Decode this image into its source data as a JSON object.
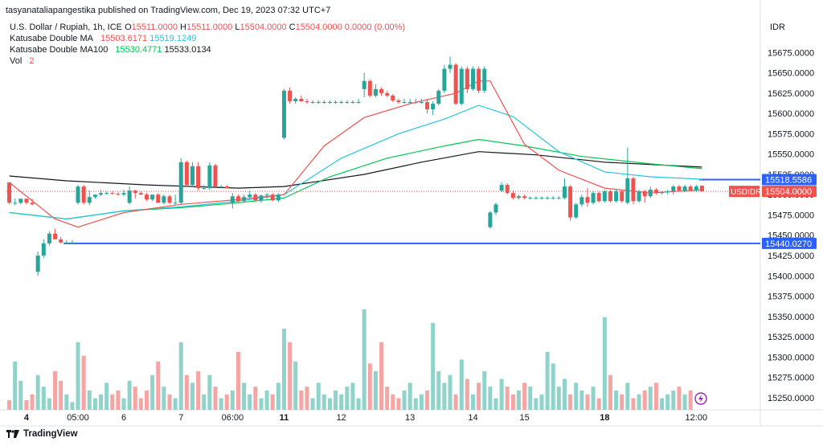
{
  "header": {
    "published": "tasyanataliapangestika published on TradingView.com, Dec 19, 2023 07:32 UTC+7",
    "symbol": "U.S. Dollar / Rupiah, 1h, ICE",
    "ohlc": {
      "o_label": "O",
      "o": "15511.0000",
      "h_label": "H",
      "h": "15511.0000",
      "l_label": "L",
      "l": "15504.0000",
      "c_label": "C",
      "c": "15504.0000",
      "chg": "0.0000 (0.00%)"
    },
    "ma1": {
      "label": "Katusabe Double MA",
      "v1": "15503.6171",
      "v2": "15519.1249"
    },
    "ma2": {
      "label": "Katusabe Double MA100",
      "v1": "15530.4771",
      "v2": "15533.0134"
    },
    "vol": {
      "label": "Vol",
      "value": "2"
    }
  },
  "footer": {
    "brand": "TradingView"
  },
  "colors": {
    "up": "#26a69a",
    "down": "#ef5350",
    "ma_red": "#ef5350",
    "ma_cyan": "#26c6da",
    "ma_green": "#00c853",
    "ma_black": "#131722",
    "hline": "#2962ff"
  },
  "chart_data": {
    "type": "candlestick",
    "currency_label": "IDR",
    "ylim": [
      15235,
      15712
    ],
    "y_ticks": [
      15250,
      15275,
      15300,
      15325,
      15350,
      15375,
      15400,
      15425,
      15450,
      15475,
      15500,
      15525,
      15550,
      15575,
      15600,
      15625,
      15650,
      15675
    ],
    "x_ticks": [
      {
        "label": "4",
        "bold": true,
        "i": 3
      },
      {
        "label": "05:00",
        "bold": false,
        "i": 12
      },
      {
        "label": "6",
        "bold": false,
        "i": 20
      },
      {
        "label": "7",
        "bold": false,
        "i": 30
      },
      {
        "label": "06:00",
        "bold": false,
        "i": 39
      },
      {
        "label": "11",
        "bold": true,
        "i": 48
      },
      {
        "label": "12",
        "bold": false,
        "i": 58
      },
      {
        "label": "13",
        "bold": false,
        "i": 70
      },
      {
        "label": "14",
        "bold": false,
        "i": 81
      },
      {
        "label": "15",
        "bold": false,
        "i": 90
      },
      {
        "label": "18",
        "bold": true,
        "i": 104
      },
      {
        "label": "12:00",
        "bold": false,
        "i": 120
      }
    ],
    "candles": [
      [
        15515,
        15515,
        15488,
        15490
      ],
      [
        15490,
        15495,
        15487,
        15490
      ],
      [
        15490,
        15495,
        15488,
        15495
      ],
      [
        15495,
        15495,
        15488,
        15490
      ],
      [
        15490,
        15495,
        15487,
        15488
      ],
      [
        15405,
        15430,
        15400,
        15425
      ],
      [
        15425,
        15445,
        15422,
        15440
      ],
      [
        15440,
        15455,
        15437,
        15452
      ],
      [
        15452,
        15458,
        15448,
        15445
      ],
      [
        15445,
        15448,
        15440,
        15441
      ],
      [
        15441,
        15444,
        15440,
        15441
      ],
      [
        15441,
        15444,
        15440,
        15441
      ],
      [
        15490,
        15512,
        15488,
        15510
      ],
      [
        15510,
        15512,
        15488,
        15490
      ],
      [
        15490,
        15505,
        15487,
        15497
      ],
      [
        15497,
        15500,
        15495,
        15500
      ],
      [
        15500,
        15506,
        15498,
        15502
      ],
      [
        15502,
        15504,
        15500,
        15502
      ],
      [
        15502,
        15504,
        15500,
        15501
      ],
      [
        15501,
        15503,
        15499,
        15500
      ],
      [
        15500,
        15506,
        15498,
        15502
      ],
      [
        15490,
        15510,
        15488,
        15505
      ],
      [
        15505,
        15506,
        15495,
        15502
      ],
      [
        15502,
        15504,
        15500,
        15500
      ],
      [
        15500,
        15502,
        15492,
        15494
      ],
      [
        15494,
        15500,
        15492,
        15500
      ],
      [
        15500,
        15502,
        15490,
        15490
      ],
      [
        15490,
        15500,
        15488,
        15498
      ],
      [
        15498,
        15500,
        15488,
        15490
      ],
      [
        15490,
        15500,
        15488,
        15490
      ],
      [
        15490,
        15545,
        15488,
        15540
      ],
      [
        15540,
        15542,
        15510,
        15512
      ],
      [
        15512,
        15540,
        15510,
        15535
      ],
      [
        15535,
        15540,
        15505,
        15508
      ],
      [
        15508,
        15512,
        15506,
        15508
      ],
      [
        15508,
        15540,
        15506,
        15536
      ],
      [
        15536,
        15538,
        15508,
        15510
      ],
      [
        15510,
        15512,
        15508,
        15510
      ],
      [
        15510,
        15512,
        15508,
        15508
      ],
      [
        15490,
        15502,
        15483,
        15498
      ],
      [
        15498,
        15500,
        15490,
        15492
      ],
      [
        15492,
        15500,
        15490,
        15497
      ],
      [
        15497,
        15505,
        15495,
        15500
      ],
      [
        15500,
        15502,
        15492,
        15493
      ],
      [
        15493,
        15500,
        15490,
        15499
      ],
      [
        15499,
        15502,
        15495,
        15500
      ],
      [
        15500,
        15502,
        15492,
        15493
      ],
      [
        15493,
        15502,
        15491,
        15500
      ],
      [
        15570,
        15630,
        15568,
        15628
      ],
      [
        15628,
        15632,
        15612,
        15615
      ],
      [
        15615,
        15620,
        15612,
        15618
      ],
      [
        15618,
        15622,
        15614,
        15615
      ],
      [
        15615,
        15618,
        15612,
        15614
      ],
      [
        15614,
        15616,
        15612,
        15614
      ],
      [
        15614,
        15616,
        15612,
        15614
      ],
      [
        15614,
        15616,
        15612,
        15614
      ],
      [
        15614,
        15616,
        15612,
        15614
      ],
      [
        15614,
        15616,
        15612,
        15614
      ],
      [
        15614,
        15616,
        15612,
        15614
      ],
      [
        15614,
        15616,
        15612,
        15614
      ],
      [
        15614,
        15616,
        15612,
        15614
      ],
      [
        15614,
        15618,
        15612,
        15614
      ],
      [
        15630,
        15650,
        15620,
        15640
      ],
      [
        15640,
        15642,
        15620,
        15622
      ],
      [
        15622,
        15636,
        15620,
        15630
      ],
      [
        15630,
        15632,
        15622,
        15625
      ],
      [
        15625,
        15628,
        15620,
        15622
      ],
      [
        15622,
        15624,
        15614,
        15616
      ],
      [
        15616,
        15618,
        15612,
        15614
      ],
      [
        15614,
        15618,
        15612,
        15614
      ],
      [
        15614,
        15618,
        15612,
        15614
      ],
      [
        15614,
        15618,
        15612,
        15614
      ],
      [
        15614,
        15618,
        15612,
        15614
      ],
      [
        15614,
        15618,
        15600,
        15605
      ],
      [
        15605,
        15615,
        15598,
        15612
      ],
      [
        15612,
        15630,
        15610,
        15628
      ],
      [
        15628,
        15660,
        15625,
        15655
      ],
      [
        15655,
        15670,
        15650,
        15660
      ],
      [
        15660,
        15662,
        15610,
        15612
      ],
      [
        15612,
        15658,
        15610,
        15655
      ],
      [
        15655,
        15658,
        15625,
        15630
      ],
      [
        15630,
        15658,
        15628,
        15655
      ],
      [
        15655,
        15658,
        15625,
        15628
      ],
      [
        15628,
        15658,
        15625,
        15655
      ],
      [
        15460,
        15480,
        15458,
        15478
      ],
      [
        15478,
        15490,
        15475,
        15488
      ],
      [
        15505,
        15515,
        15503,
        15512
      ],
      [
        15512,
        15514,
        15500,
        15502
      ],
      [
        15502,
        15505,
        15494,
        15496
      ],
      [
        15496,
        15500,
        15494,
        15498
      ],
      [
        15498,
        15500,
        15494,
        15496
      ],
      [
        15496,
        15498,
        15494,
        15496
      ],
      [
        15496,
        15498,
        15494,
        15496
      ],
      [
        15496,
        15498,
        15494,
        15496
      ],
      [
        15496,
        15498,
        15494,
        15496
      ],
      [
        15496,
        15498,
        15494,
        15496
      ],
      [
        15496,
        15498,
        15494,
        15496
      ],
      [
        15496,
        15520,
        15494,
        15510
      ],
      [
        15510,
        15512,
        15468,
        15472
      ],
      [
        15472,
        15490,
        15470,
        15488
      ],
      [
        15488,
        15500,
        15485,
        15497
      ],
      [
        15497,
        15508,
        15485,
        15490
      ],
      [
        15490,
        15504,
        15488,
        15502
      ],
      [
        15502,
        15504,
        15490,
        15492
      ],
      [
        15492,
        15506,
        15490,
        15504
      ],
      [
        15504,
        15506,
        15490,
        15492
      ],
      [
        15492,
        15506,
        15490,
        15504
      ],
      [
        15504,
        15506,
        15490,
        15492
      ],
      [
        15490,
        15558,
        15488,
        15520
      ],
      [
        15520,
        15522,
        15488,
        15492
      ],
      [
        15492,
        15506,
        15490,
        15504
      ],
      [
        15504,
        15506,
        15490,
        15498
      ],
      [
        15498,
        15510,
        15496,
        15506
      ],
      [
        15506,
        15508,
        15500,
        15502
      ],
      [
        15502,
        15504,
        15500,
        15503
      ],
      [
        15503,
        15506,
        15500,
        15504
      ],
      [
        15504,
        15512,
        15500,
        15510
      ],
      [
        15510,
        15512,
        15504,
        15505
      ],
      [
        15505,
        15512,
        15503,
        15510
      ],
      [
        15510,
        15512,
        15504,
        15505
      ],
      [
        15505,
        15512,
        15503,
        15510
      ],
      [
        15511,
        15511,
        15504,
        15504
      ]
    ],
    "volume": [
      5,
      25,
      15,
      5,
      8,
      18,
      12,
      6,
      20,
      15,
      8,
      4,
      35,
      28,
      10,
      6,
      8,
      14,
      8,
      10,
      6,
      15,
      12,
      6,
      10,
      18,
      25,
      12,
      8,
      6,
      35,
      18,
      14,
      20,
      8,
      18,
      12,
      6,
      8,
      10,
      30,
      14,
      8,
      12,
      6,
      10,
      8,
      14,
      42,
      35,
      25,
      10,
      12,
      6,
      14,
      8,
      6,
      10,
      8,
      12,
      14,
      6,
      52,
      24,
      20,
      35,
      12,
      8,
      6,
      10,
      14,
      6,
      8,
      10,
      45,
      20,
      14,
      18,
      8,
      26,
      16,
      8,
      14,
      20,
      12,
      6,
      16,
      12,
      8,
      10,
      14,
      12,
      6,
      8,
      30,
      24,
      12,
      16,
      8,
      14,
      10,
      8,
      12,
      6,
      48,
      18,
      10,
      8,
      14,
      6,
      8,
      10,
      12,
      14,
      6,
      8,
      10,
      12,
      8,
      10
    ],
    "ma_red": [
      [
        0,
        15515
      ],
      [
        8,
        15470
      ],
      [
        12,
        15460
      ],
      [
        20,
        15478
      ],
      [
        30,
        15488
      ],
      [
        40,
        15494
      ],
      [
        48,
        15500
      ],
      [
        55,
        15560
      ],
      [
        62,
        15595
      ],
      [
        70,
        15612
      ],
      [
        78,
        15625
      ],
      [
        82,
        15640
      ],
      [
        84,
        15640
      ],
      [
        90,
        15562
      ],
      [
        96,
        15530
      ],
      [
        104,
        15508
      ],
      [
        112,
        15502
      ],
      [
        121,
        15506
      ]
    ],
    "ma_cyan": [
      [
        0,
        15478
      ],
      [
        10,
        15470
      ],
      [
        20,
        15480
      ],
      [
        30,
        15485
      ],
      [
        40,
        15492
      ],
      [
        48,
        15500
      ],
      [
        58,
        15545
      ],
      [
        68,
        15575
      ],
      [
        76,
        15593
      ],
      [
        82,
        15610
      ],
      [
        88,
        15596
      ],
      [
        96,
        15553
      ],
      [
        104,
        15528
      ],
      [
        112,
        15522
      ],
      [
        121,
        15519
      ]
    ],
    "ma_green": [
      [
        0,
        15478
      ],
      [
        10,
        15470
      ],
      [
        20,
        15480
      ],
      [
        30,
        15484
      ],
      [
        40,
        15490
      ],
      [
        48,
        15496
      ],
      [
        56,
        15522
      ],
      [
        66,
        15545
      ],
      [
        76,
        15560
      ],
      [
        82,
        15568
      ],
      [
        90,
        15560
      ],
      [
        100,
        15547
      ],
      [
        112,
        15538
      ],
      [
        121,
        15532
      ]
    ],
    "ma_black": [
      [
        0,
        15523
      ],
      [
        10,
        15517
      ],
      [
        24,
        15512
      ],
      [
        40,
        15508
      ],
      [
        48,
        15510
      ],
      [
        62,
        15525
      ],
      [
        72,
        15540
      ],
      [
        82,
        15553
      ],
      [
        92,
        15549
      ],
      [
        104,
        15540
      ],
      [
        121,
        15534
      ]
    ],
    "hlines": [
      {
        "value": 15518.5586,
        "label": "15518.5586",
        "from": 121
      },
      {
        "value": 15440.027,
        "label": "15440.0270",
        "from": 10
      }
    ],
    "last_price": {
      "value": 15504.0,
      "label": "15504.0000",
      "symbol": "USDIDR"
    }
  }
}
